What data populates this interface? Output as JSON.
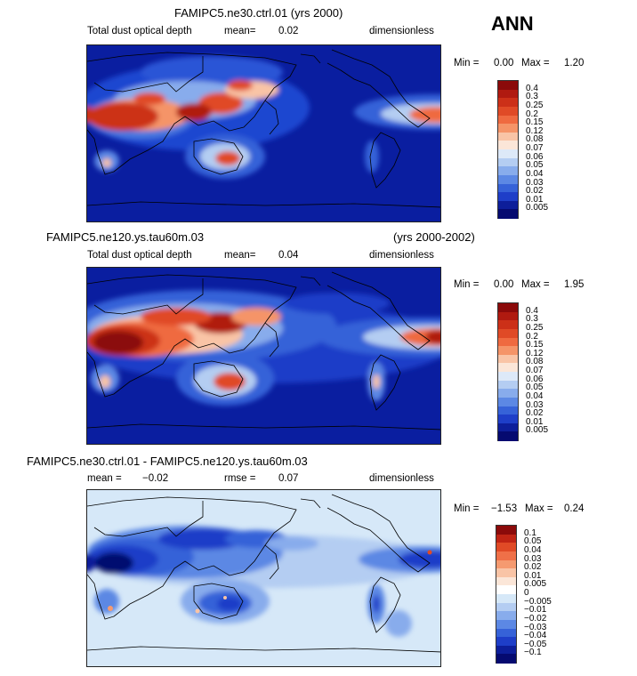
{
  "season": "ANN",
  "panels": [
    {
      "title": "FAMIPC5.ne30.ctrl.01 (yrs 2000)",
      "variable": "Total dust optical depth",
      "mean_label": "mean=",
      "mean_value": "0.02",
      "units": "dimensionless",
      "min_label": "Min =",
      "min_value": "0.00",
      "max_label": "Max =",
      "max_value": "1.20",
      "ticks": [
        "0.4",
        "0.3",
        "0.25",
        "0.2",
        "0.15",
        "0.12",
        "0.08",
        "0.07",
        "0.06",
        "0.05",
        "0.04",
        "0.03",
        "0.02",
        "0.01",
        "0.005"
      ]
    },
    {
      "title": "FAMIPC5.ne120.ys.tau60m.03",
      "years": "(yrs 2000-2002)",
      "variable": "Total dust optical depth",
      "mean_label": "mean=",
      "mean_value": "0.04",
      "units": "dimensionless",
      "min_label": "Min =",
      "min_value": "0.00",
      "max_label": "Max =",
      "max_value": "1.95",
      "ticks": [
        "0.4",
        "0.3",
        "0.25",
        "0.2",
        "0.15",
        "0.12",
        "0.08",
        "0.07",
        "0.06",
        "0.05",
        "0.04",
        "0.03",
        "0.02",
        "0.01",
        "0.005"
      ]
    },
    {
      "title": "FAMIPC5.ne30.ctrl.01 - FAMIPC5.ne120.ys.tau60m.03",
      "mean_label": "mean =",
      "mean_value": "−0.02",
      "rmse_label": "rmse =",
      "rmse_value": "0.07",
      "units": "dimensionless",
      "min_label": "Min =",
      "min_value": "−1.53",
      "max_label": "Max =",
      "max_value": "0.24",
      "ticks": [
        "0.1",
        "0.05",
        "0.04",
        "0.03",
        "0.02",
        "0.01",
        "0.005",
        "0",
        "−0.005",
        "−0.01",
        "−0.02",
        "−0.03",
        "−0.04",
        "−0.05",
        "−0.1"
      ]
    }
  ],
  "colors": {
    "abs_scale": [
      "#8b0a0a",
      "#b01a10",
      "#cc3018",
      "#e04a26",
      "#ef6a40",
      "#f59468",
      "#f9c4a6",
      "#fbe6d8",
      "#dde9f8",
      "#b4cdf2",
      "#88acec",
      "#5c88e4",
      "#3662d8",
      "#1e3ec8",
      "#0d1e9a",
      "#050a70"
    ],
    "diff_scale": [
      "#8b0a0a",
      "#c02414",
      "#e04a26",
      "#ef7048",
      "#f59a70",
      "#f9c4a6",
      "#fbe6d8",
      "#ffffff",
      "#d6e8f8",
      "#b4cdf2",
      "#88acec",
      "#5c88e4",
      "#3662d8",
      "#1e3ec8",
      "#0d1e9a",
      "#050a70"
    ]
  }
}
